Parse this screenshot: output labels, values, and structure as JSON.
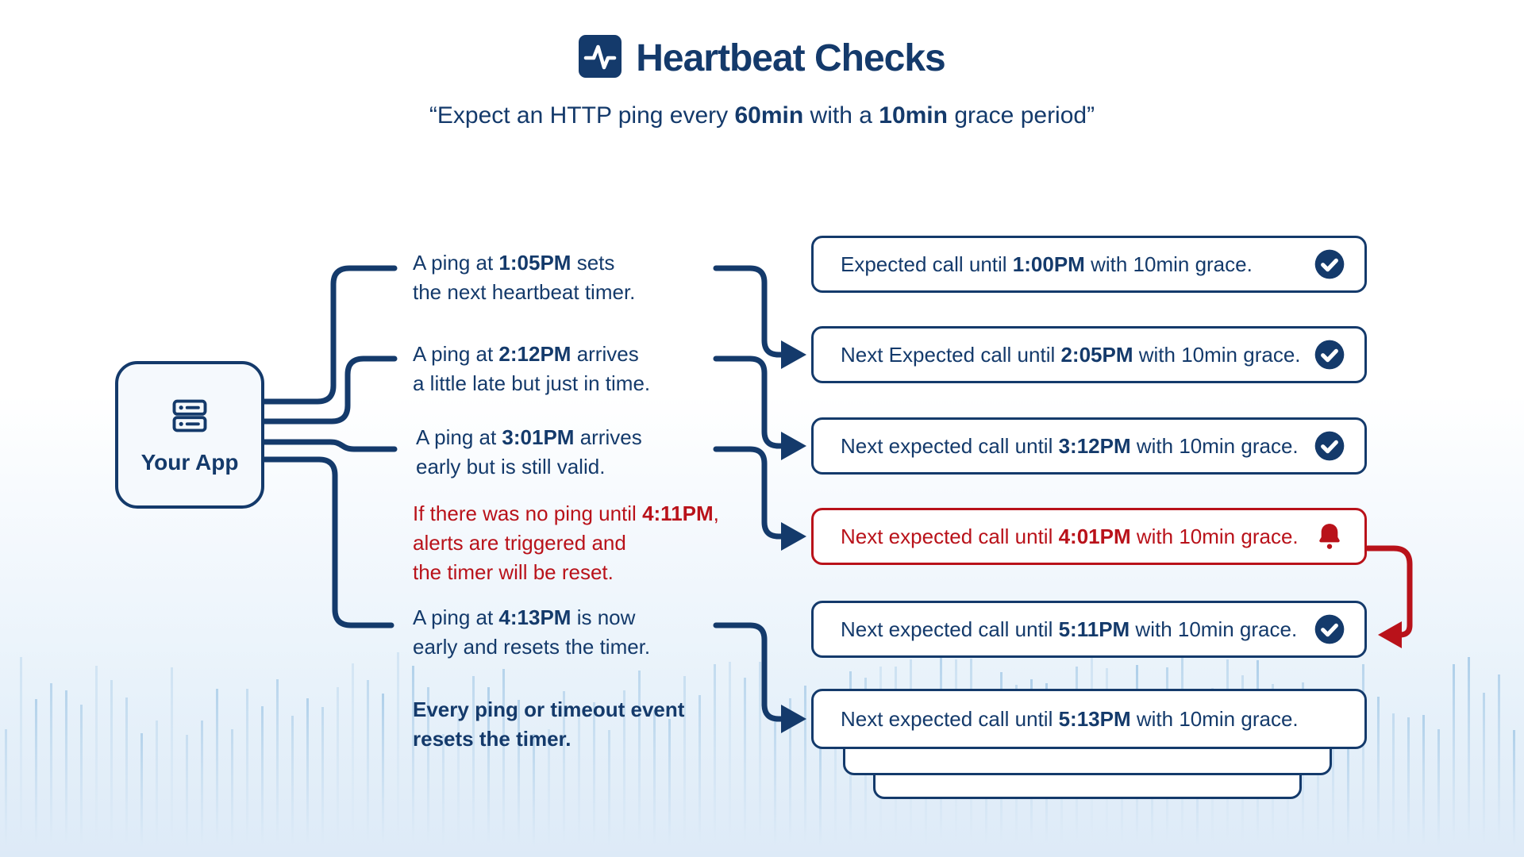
{
  "header": {
    "title": "Heartbeat Checks",
    "subtitle_segments": [
      {
        "t": "“Expect an HTTP ping every "
      },
      {
        "t": "60min",
        "b": 1
      },
      {
        "t": " with a "
      },
      {
        "t": "10min",
        "b": 1
      },
      {
        "t": " grace period”"
      }
    ]
  },
  "app_node": {
    "label": "Your App"
  },
  "annotations": [
    {
      "style": "normal",
      "lines": [
        [
          {
            "t": "A ping at "
          },
          {
            "t": "1:05PM",
            "b": 1
          },
          {
            "t": " sets"
          }
        ],
        [
          {
            "t": "the next heartbeat timer."
          }
        ]
      ]
    },
    {
      "style": "normal",
      "lines": [
        [
          {
            "t": "A ping at "
          },
          {
            "t": "2:12PM",
            "b": 1
          },
          {
            "t": " arrives"
          }
        ],
        [
          {
            "t": "a little late but just in time."
          }
        ]
      ]
    },
    {
      "style": "normal",
      "lines": [
        [
          {
            "t": "A ping at "
          },
          {
            "t": "3:01PM",
            "b": 1
          },
          {
            "t": " arrives"
          }
        ],
        [
          {
            "t": "early but is still valid."
          }
        ]
      ]
    },
    {
      "style": "alert",
      "lines": [
        [
          {
            "t": "If there was no ping until "
          },
          {
            "t": "4:11PM",
            "b": 1
          },
          {
            "t": ","
          }
        ],
        [
          {
            "t": "alerts are triggered and"
          }
        ],
        [
          {
            "t": "the timer will be reset."
          }
        ]
      ]
    },
    {
      "style": "normal",
      "lines": [
        [
          {
            "t": "A ping at "
          },
          {
            "t": "4:13PM",
            "b": 1
          },
          {
            "t": " is now"
          }
        ],
        [
          {
            "t": "early and resets the timer."
          }
        ]
      ]
    },
    {
      "style": "emph",
      "lines": [
        [
          {
            "t": "Every ping or timeout event",
            "b": 1
          }
        ],
        [
          {
            "t": "resets the timer.",
            "b": 1
          }
        ]
      ]
    }
  ],
  "events": [
    {
      "prefix": "Expected call until ",
      "time": "1:00PM",
      "suffix": " with 10min grace.",
      "icon": "check",
      "alert": false
    },
    {
      "prefix": "Next Expected call until ",
      "time": "2:05PM",
      "suffix": " with 10min grace.",
      "icon": "check",
      "alert": false
    },
    {
      "prefix": "Next expected call until ",
      "time": "3:12PM",
      "suffix": " with 10min grace.",
      "icon": "check",
      "alert": false
    },
    {
      "prefix": "Next expected call until ",
      "time": "4:01PM",
      "suffix": " with 10min grace.",
      "icon": "bell",
      "alert": true
    },
    {
      "prefix": "Next expected call until ",
      "time": "5:11PM",
      "suffix": " with 10min grace.",
      "icon": "check",
      "alert": false
    },
    {
      "prefix": "Next expected call until ",
      "time": "5:13PM",
      "suffix": " with 10min grace.",
      "icon": "none",
      "alert": false
    }
  ],
  "colors": {
    "navy": "#143A6B",
    "red": "#B9121A",
    "card_bg": "#FFFFFF",
    "app_bg": "#F5F9FD",
    "wave_blue": "#9CC4E4"
  }
}
